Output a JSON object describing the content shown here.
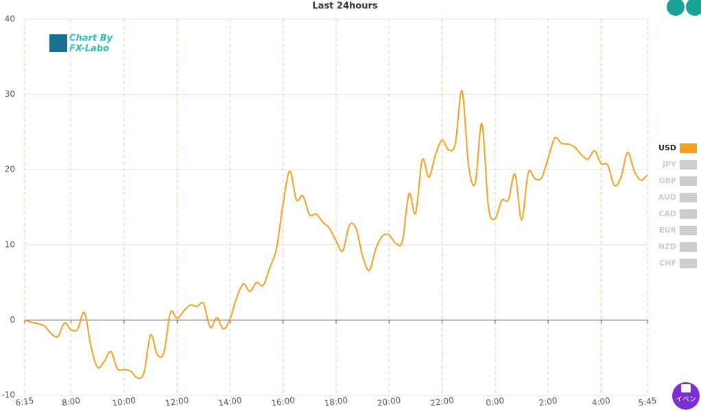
{
  "chart_data": {
    "type": "line",
    "title": "Last 24hours",
    "x": [
      "6:15",
      "6:30",
      "6:45",
      "7:00",
      "7:15",
      "7:30",
      "7:45",
      "8:00",
      "8:15",
      "8:30",
      "8:45",
      "9:00",
      "9:15",
      "9:30",
      "9:45",
      "10:00",
      "10:15",
      "10:30",
      "10:45",
      "11:00",
      "11:15",
      "11:30",
      "11:45",
      "12:00",
      "12:15",
      "12:30",
      "12:45",
      "13:00",
      "13:15",
      "13:30",
      "13:45",
      "14:00",
      "14:15",
      "14:30",
      "14:45",
      "15:00",
      "15:15",
      "15:30",
      "15:45",
      "16:00",
      "16:15",
      "16:30",
      "16:45",
      "17:00",
      "17:15",
      "17:30",
      "17:45",
      "18:00",
      "18:15",
      "18:30",
      "18:45",
      "19:00",
      "19:15",
      "19:30",
      "19:45",
      "20:00",
      "20:15",
      "20:30",
      "20:45",
      "21:00",
      "21:15",
      "21:30",
      "21:45",
      "22:00",
      "22:15",
      "22:30",
      "22:45",
      "23:00",
      "23:15",
      "23:30",
      "23:45",
      "0:00",
      "0:15",
      "0:30",
      "0:45",
      "1:00",
      "1:15",
      "1:30",
      "1:45",
      "2:00",
      "2:15",
      "2:30",
      "2:45",
      "3:00",
      "3:15",
      "3:30",
      "3:45",
      "4:00",
      "4:15",
      "4:30",
      "4:45",
      "5:00",
      "5:15",
      "5:30",
      "5:45"
    ],
    "series": [
      {
        "name": "USD",
        "color": "#f7a01d",
        "values": [
          0,
          -0.3,
          -0.5,
          -0.8,
          -1.8,
          -2.2,
          -0.4,
          -1.3,
          -1.2,
          1.0,
          -3.5,
          -6.3,
          -5.5,
          -4.2,
          -6.5,
          -6.6,
          -6.8,
          -7.7,
          -7,
          -2,
          -4.6,
          -4.3,
          1.0,
          0.2,
          1.2,
          2.0,
          1.8,
          2.2,
          -1.0,
          0.3,
          -1.2,
          0.2,
          3.0,
          4.8,
          3.8,
          5.0,
          4.6,
          7.0,
          9.5,
          15.5,
          19.8,
          16,
          16.5,
          14,
          14.1,
          13,
          12.2,
          10.5,
          9.2,
          12.6,
          12.2,
          8.5,
          6.6,
          9.5,
          11.2,
          11.3,
          10.2,
          10.5,
          16.8,
          14.2,
          21.3,
          19,
          22,
          23.9,
          22.6,
          23.5,
          30.5,
          20.5,
          18.2,
          26.1,
          15,
          13.5,
          15.9,
          16,
          19.4,
          13.3,
          19.6,
          18.8,
          18.9,
          21.5,
          24.2,
          23.5,
          23.4,
          23.0,
          22,
          21.4,
          22.5,
          20.8,
          20.6,
          17.9,
          19,
          22.3,
          19.8,
          18.6,
          19.3
        ]
      }
    ],
    "inactive_series": [
      {
        "name": "JPY"
      },
      {
        "name": "GBP"
      },
      {
        "name": "AUD"
      },
      {
        "name": "CAD"
      },
      {
        "name": "EUR"
      },
      {
        "name": "NZD"
      },
      {
        "name": "CHF"
      }
    ],
    "inactive_color": "#cccccc",
    "xticks": [
      "6:15",
      "8:00",
      "10:00",
      "12:00",
      "14:00",
      "16:00",
      "18:00",
      "20:00",
      "22:00",
      "0:00",
      "2:00",
      "4:00",
      "5:45"
    ],
    "ylim": [
      -10,
      40
    ],
    "yticks": [
      -10,
      0,
      10,
      20,
      30,
      40
    ],
    "grid": true,
    "watermark": [
      "Chart By",
      "FX-Labo"
    ],
    "event_button": "イベン"
  }
}
